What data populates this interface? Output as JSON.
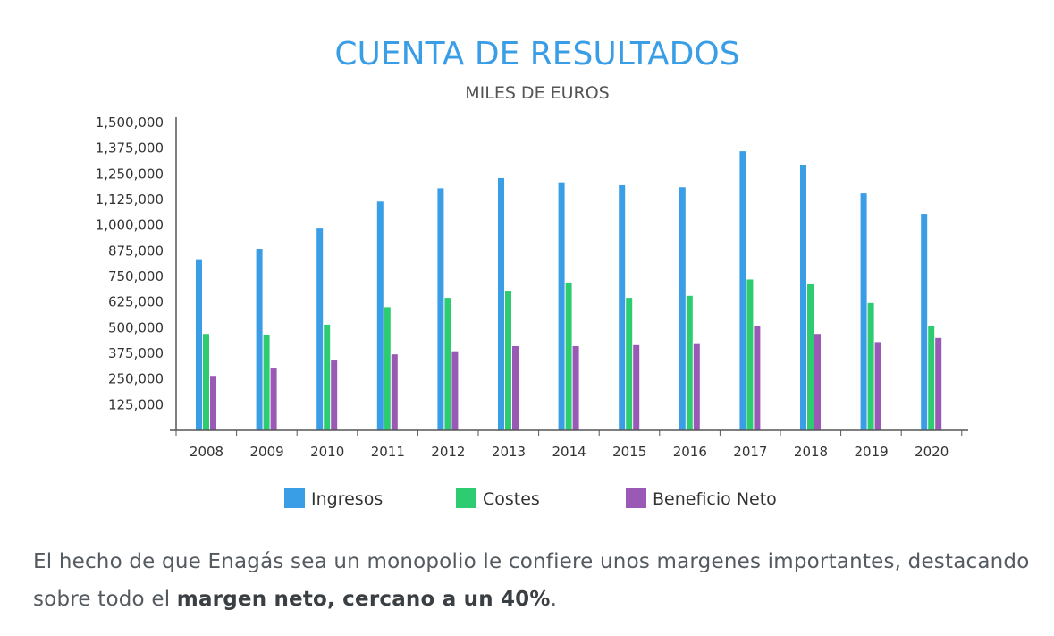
{
  "chart_data": {
    "type": "bar",
    "title": "CUENTA DE RESULTADOS",
    "subtitle": "MILES DE EUROS",
    "categories": [
      "2008",
      "2009",
      "2010",
      "2011",
      "2012",
      "2013",
      "2014",
      "2015",
      "2016",
      "2017",
      "2018",
      "2019",
      "2020"
    ],
    "series": [
      {
        "name": "Ingresos",
        "color": "#3a9ee6",
        "values": [
          830000,
          885000,
          985000,
          1115000,
          1180000,
          1230000,
          1205000,
          1195000,
          1185000,
          1360000,
          1295000,
          1155000,
          1055000
        ]
      },
      {
        "name": "Costes",
        "color": "#2ecc71",
        "values": [
          470000,
          465000,
          515000,
          600000,
          645000,
          680000,
          720000,
          645000,
          655000,
          735000,
          715000,
          620000,
          510000
        ]
      },
      {
        "name": "Beneficio Neto",
        "color": "#9b59b6",
        "values": [
          265000,
          305000,
          340000,
          370000,
          385000,
          410000,
          410000,
          415000,
          420000,
          510000,
          470000,
          430000,
          450000
        ]
      }
    ],
    "y_ticks": [
      "1,500,000",
      "1,375,000",
      "1,250,000",
      "1,125,000",
      "1,000,000",
      "875,000",
      "750,000",
      "625,000",
      "500,000",
      "375,000",
      "250,000",
      "125,000"
    ],
    "ylim": [
      0,
      1500000
    ],
    "grid": false,
    "legend_position": "bottom"
  },
  "text": {
    "paragraph_before": "El hecho de que Enagás sea un monopolio le confiere unos margenes importantes, destacando sobre todo el ",
    "paragraph_bold": "margen neto, cercano a un 40%",
    "paragraph_after": "."
  }
}
